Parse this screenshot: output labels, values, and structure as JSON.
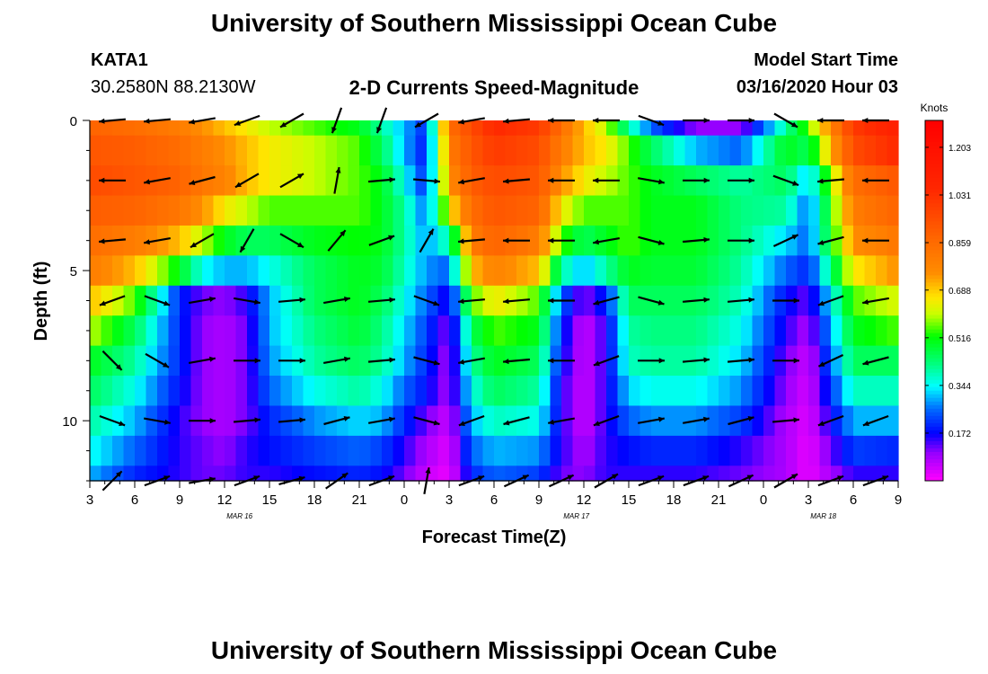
{
  "title_top": "University of Southern Mississippi Ocean Cube",
  "title_bottom": "University of Southern Mississippi Ocean Cube",
  "station": {
    "id": "KATA1",
    "coords": "30.2580N 88.2130W"
  },
  "model": {
    "label": "Model Start Time",
    "start": "03/16/2020 Hour 03"
  },
  "colors": {
    "axis": "#000000",
    "arrow": "#000000",
    "background": "#ffffff"
  },
  "chart_data": {
    "type": "heatmap",
    "title": "2-D Currents Speed-Magnitude",
    "xlabel": "Forecast Time(Z)",
    "ylabel": "Depth (ft)",
    "x_ticks": [
      "3",
      "6",
      "9",
      "12",
      "15",
      "18",
      "21",
      "0",
      "3",
      "6",
      "9",
      "12",
      "15",
      "18",
      "21",
      "0",
      "3",
      "6",
      "9"
    ],
    "x_tick_hours": [
      0,
      3,
      6,
      9,
      12,
      15,
      18,
      21,
      24,
      27,
      30,
      33,
      36,
      39,
      42,
      45,
      48,
      51,
      54
    ],
    "xlim": [
      0,
      54
    ],
    "date_labels": [
      {
        "text": "MAR 16",
        "hour": 10
      },
      {
        "text": "MAR 17",
        "hour": 32.5
      },
      {
        "text": "MAR 18",
        "hour": 49
      }
    ],
    "y_ticks": [
      "0",
      "5",
      "10"
    ],
    "y_tick_values": [
      0,
      5,
      10
    ],
    "ylim": [
      0,
      12
    ],
    "colorbar": {
      "label": "Knots",
      "ticks": [
        "1.203",
        "1.031",
        "0.859",
        "0.688",
        "0.516",
        "0.344",
        "0.172"
      ],
      "tick_values": [
        1.203,
        1.031,
        0.859,
        0.688,
        0.516,
        0.344,
        0.172
      ],
      "range": [
        0.0,
        1.3
      ]
    },
    "depths": [
      0,
      1,
      2,
      3,
      4,
      5,
      6,
      7,
      8,
      9,
      10,
      11,
      12
    ],
    "speed_profile_hours": [
      0,
      3,
      6,
      7.5,
      9,
      10.5,
      12,
      15,
      18,
      19.5,
      21,
      22.5,
      24,
      25.5,
      27,
      30,
      31.5,
      33,
      34.5,
      36,
      37.5,
      40.5,
      43.5,
      46.5,
      48,
      51,
      54
    ],
    "speed_profile": [
      [
        0.88,
        0.92,
        0.95,
        0.9,
        0.85,
        0.8,
        0.7,
        0.6,
        0.5,
        0.45,
        0.4,
        0.35,
        0.3
      ],
      [
        0.85,
        0.9,
        0.92,
        0.88,
        0.8,
        0.7,
        0.55,
        0.45,
        0.4,
        0.35,
        0.3,
        0.25,
        0.2
      ],
      [
        0.8,
        0.85,
        0.88,
        0.82,
        0.7,
        0.5,
        0.2,
        0.2,
        0.2,
        0.18,
        0.15,
        0.15,
        0.15
      ],
      [
        0.75,
        0.8,
        0.82,
        0.75,
        0.6,
        0.35,
        0.12,
        0.1,
        0.1,
        0.1,
        0.1,
        0.12,
        0.12
      ],
      [
        0.7,
        0.75,
        0.78,
        0.65,
        0.5,
        0.3,
        0.1,
        0.08,
        0.08,
        0.08,
        0.08,
        0.1,
        0.12
      ],
      [
        0.65,
        0.7,
        0.7,
        0.6,
        0.45,
        0.3,
        0.15,
        0.12,
        0.12,
        0.12,
        0.12,
        0.15,
        0.15
      ],
      [
        0.6,
        0.65,
        0.65,
        0.55,
        0.45,
        0.35,
        0.3,
        0.3,
        0.28,
        0.25,
        0.2,
        0.18,
        0.15
      ],
      [
        0.55,
        0.6,
        0.6,
        0.55,
        0.5,
        0.45,
        0.45,
        0.42,
        0.4,
        0.35,
        0.28,
        0.22,
        0.18
      ],
      [
        0.5,
        0.55,
        0.55,
        0.55,
        0.52,
        0.5,
        0.5,
        0.48,
        0.45,
        0.4,
        0.32,
        0.25,
        0.2
      ],
      [
        0.4,
        0.45,
        0.5,
        0.5,
        0.5,
        0.48,
        0.45,
        0.42,
        0.4,
        0.35,
        0.3,
        0.22,
        0.18
      ],
      [
        0.3,
        0.3,
        0.35,
        0.4,
        0.4,
        0.38,
        0.35,
        0.32,
        0.3,
        0.25,
        0.2,
        0.15,
        0.12
      ],
      [
        0.2,
        0.18,
        0.2,
        0.25,
        0.28,
        0.28,
        0.25,
        0.22,
        0.2,
        0.18,
        0.12,
        0.08,
        0.05
      ],
      [
        0.85,
        0.8,
        0.75,
        0.65,
        0.4,
        0.25,
        0.15,
        0.1,
        0.08,
        0.08,
        0.05,
        0.03,
        0.02
      ],
      [
        0.95,
        0.92,
        0.9,
        0.85,
        0.8,
        0.7,
        0.55,
        0.45,
        0.4,
        0.35,
        0.3,
        0.25,
        0.2
      ],
      [
        1.05,
        1.0,
        0.95,
        0.92,
        0.88,
        0.78,
        0.65,
        0.55,
        0.5,
        0.45,
        0.38,
        0.3,
        0.25
      ],
      [
        1.0,
        0.95,
        0.92,
        0.88,
        0.8,
        0.7,
        0.55,
        0.5,
        0.45,
        0.4,
        0.35,
        0.28,
        0.22
      ],
      [
        0.85,
        0.8,
        0.75,
        0.65,
        0.55,
        0.4,
        0.25,
        0.2,
        0.18,
        0.15,
        0.15,
        0.15,
        0.12
      ],
      [
        0.7,
        0.7,
        0.65,
        0.55,
        0.45,
        0.3,
        0.1,
        0.05,
        0.05,
        0.05,
        0.05,
        0.08,
        0.1
      ],
      [
        0.6,
        0.65,
        0.6,
        0.55,
        0.5,
        0.4,
        0.2,
        0.15,
        0.15,
        0.15,
        0.15,
        0.15,
        0.15
      ],
      [
        0.4,
        0.55,
        0.55,
        0.55,
        0.55,
        0.5,
        0.45,
        0.4,
        0.38,
        0.32,
        0.25,
        0.18,
        0.15
      ],
      [
        0.25,
        0.45,
        0.5,
        0.5,
        0.5,
        0.48,
        0.45,
        0.42,
        0.4,
        0.35,
        0.28,
        0.2,
        0.15
      ],
      [
        0.1,
        0.3,
        0.45,
        0.5,
        0.5,
        0.48,
        0.45,
        0.42,
        0.4,
        0.35,
        0.28,
        0.2,
        0.15
      ],
      [
        0.1,
        0.25,
        0.4,
        0.42,
        0.42,
        0.4,
        0.38,
        0.35,
        0.32,
        0.28,
        0.22,
        0.15,
        0.12
      ],
      [
        0.4,
        0.5,
        0.45,
        0.4,
        0.32,
        0.25,
        0.18,
        0.15,
        0.12,
        0.1,
        0.08,
        0.08,
        0.08
      ],
      [
        0.55,
        0.45,
        0.3,
        0.25,
        0.25,
        0.2,
        0.12,
        0.08,
        0.05,
        0.04,
        0.03,
        0.02,
        0.02
      ],
      [
        1.0,
        0.95,
        0.85,
        0.8,
        0.75,
        0.65,
        0.55,
        0.5,
        0.45,
        0.38,
        0.3,
        0.22,
        0.15
      ],
      [
        1.1,
        1.05,
        0.92,
        0.88,
        0.82,
        0.75,
        0.62,
        0.55,
        0.45,
        0.38,
        0.3,
        0.2,
        0.15
      ]
    ],
    "vector_hours": [
      1.5,
      4.5,
      7.5,
      10.5,
      13.5,
      16.5,
      19.5,
      22.5,
      25.5,
      28.5,
      31.5,
      34.5,
      37.5,
      40.5,
      43.5,
      46.5,
      49.5,
      52.5
    ],
    "vector_depths": [
      0,
      2,
      4,
      6,
      8,
      10,
      12
    ],
    "vector_directions_deg": [
      [
        185,
        180,
        185,
        200,
        315,
        340,
        45
      ],
      [
        185,
        190,
        190,
        340,
        330,
        350,
        20
      ],
      [
        190,
        195,
        210,
        10,
        10,
        0,
        10
      ],
      [
        200,
        210,
        240,
        350,
        0,
        5,
        20
      ],
      [
        210,
        30,
        330,
        5,
        0,
        5,
        15
      ],
      [
        250,
        80,
        50,
        10,
        10,
        15,
        35
      ],
      [
        250,
        5,
        20,
        5,
        5,
        10,
        20
      ],
      [
        210,
        355,
        60,
        340,
        345,
        345,
        80
      ],
      [
        190,
        190,
        185,
        185,
        190,
        200,
        20
      ],
      [
        185,
        185,
        180,
        185,
        185,
        195,
        25
      ],
      [
        180,
        180,
        180,
        180,
        180,
        190,
        25
      ],
      [
        180,
        180,
        190,
        195,
        200,
        200,
        30
      ],
      [
        340,
        350,
        345,
        345,
        0,
        10,
        20
      ],
      [
        0,
        0,
        5,
        5,
        5,
        10,
        20
      ],
      [
        0,
        0,
        0,
        5,
        5,
        15,
        25
      ],
      [
        330,
        340,
        25,
        0,
        0,
        5,
        30
      ],
      [
        180,
        185,
        195,
        200,
        205,
        200,
        20
      ],
      [
        180,
        180,
        180,
        190,
        195,
        200,
        20
      ]
    ]
  }
}
